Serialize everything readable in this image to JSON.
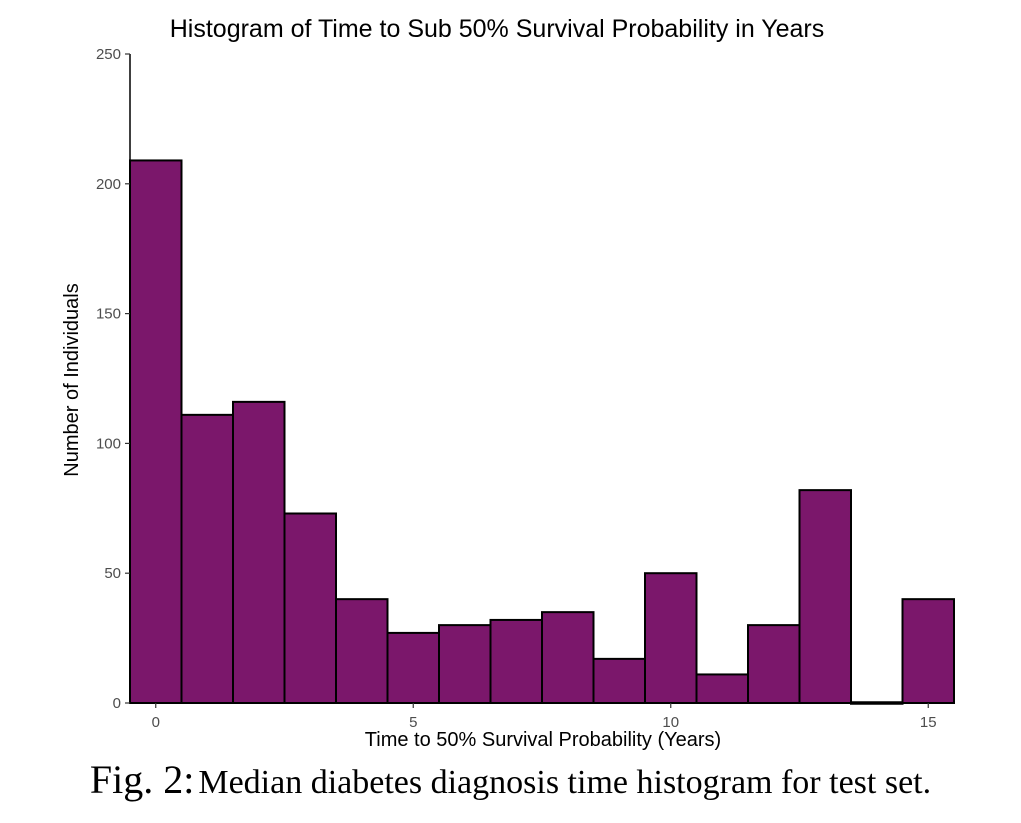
{
  "chart_data": {
    "type": "bar",
    "title": "Histogram of Time to Sub 50% Survival Probability in Years",
    "xlabel": "Time to 50% Survival Probability (Years)",
    "ylabel": "Number of Individuals",
    "bin_width": 1,
    "bin_centers": [
      0,
      1,
      2,
      3,
      4,
      5,
      6,
      7,
      8,
      9,
      10,
      11,
      12,
      13,
      14,
      15
    ],
    "values": [
      209,
      111,
      116,
      73,
      40,
      27,
      30,
      32,
      35,
      17,
      50,
      11,
      30,
      82,
      0,
      40
    ],
    "xlim": [
      -0.5,
      15.5
    ],
    "ylim": [
      0,
      250
    ],
    "x_ticks": [
      "0",
      "5",
      "10",
      "15"
    ],
    "y_ticks": [
      "0",
      "50",
      "100",
      "150",
      "200",
      "250"
    ],
    "grid": false,
    "colors": {
      "bar_fill": "#7b176b",
      "bar_edge": "#000000"
    }
  },
  "caption": {
    "label": "Fig. 2:",
    "text": "Median diabetes diagnosis time histogram for test set."
  }
}
